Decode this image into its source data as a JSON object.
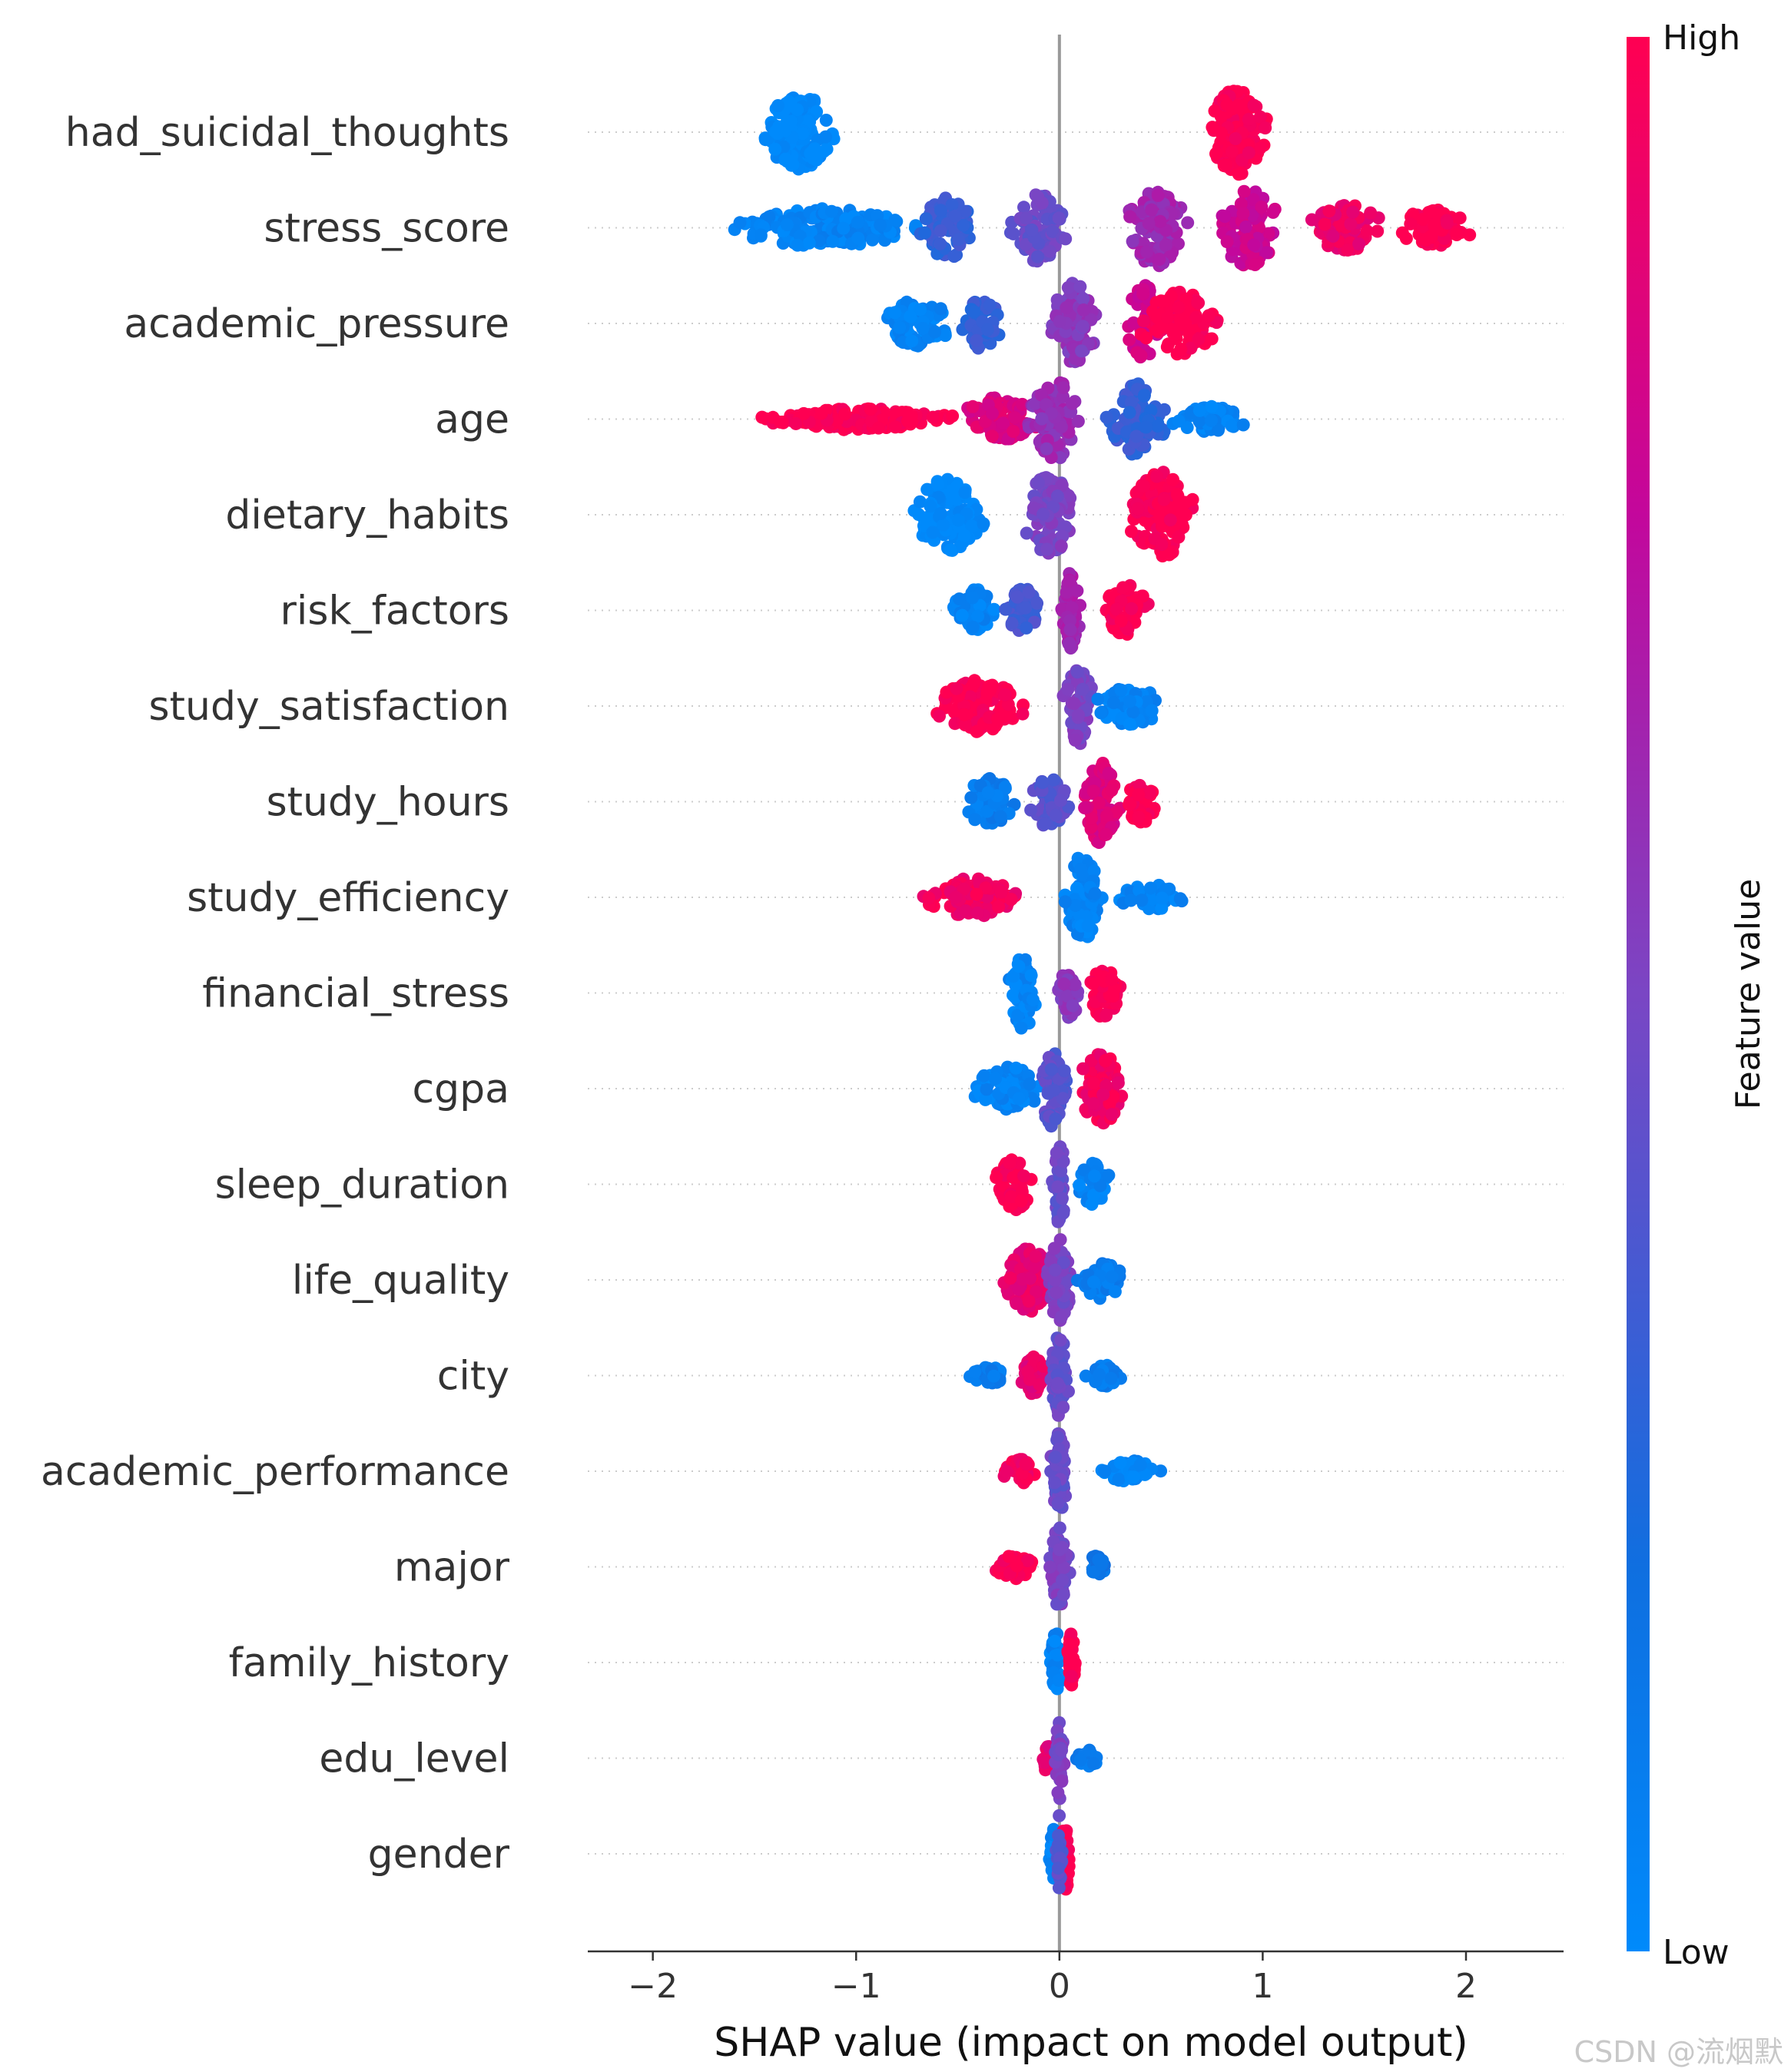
{
  "chart_data": {
    "type": "scatter",
    "subtype": "shap-beeswarm-summary",
    "xlabel": "SHAP value (impact on model output)",
    "xlim": [
      -2.32,
      2.48
    ],
    "xticks": [
      -2,
      -1,
      0,
      1,
      2
    ],
    "xtick_labels": [
      "−2",
      "−1",
      "0",
      "1",
      "2"
    ],
    "colorbar": {
      "label": "Feature value",
      "high_label": "High",
      "low_label": "Low",
      "low_color": "#008afb",
      "high_color": "#ff0052"
    },
    "features": [
      {
        "name": "had_suicidal_thoughts",
        "clusters": [
          {
            "c": -1.28,
            "w": 0.22,
            "h": 0.9,
            "v": 0.0,
            "n": 140
          },
          {
            "c": 0.87,
            "w": 0.18,
            "h": 1.0,
            "v": 1.0,
            "n": 150
          }
        ]
      },
      {
        "name": "stress_score",
        "clusters": [
          {
            "c": -1.15,
            "w": 0.6,
            "h": 0.45,
            "v": 0.05,
            "n": 170
          },
          {
            "c": -0.55,
            "w": 0.18,
            "h": 0.7,
            "v": 0.3,
            "n": 70
          },
          {
            "c": -0.1,
            "w": 0.18,
            "h": 0.8,
            "v": 0.45,
            "n": 80
          },
          {
            "c": 0.48,
            "w": 0.2,
            "h": 0.9,
            "v": 0.62,
            "n": 90
          },
          {
            "c": 0.93,
            "w": 0.2,
            "h": 0.9,
            "v": 0.78,
            "n": 90
          },
          {
            "c": 1.4,
            "w": 0.25,
            "h": 0.55,
            "v": 0.92,
            "n": 70
          },
          {
            "c": 1.85,
            "w": 0.25,
            "h": 0.45,
            "v": 1.0,
            "n": 60
          }
        ]
      },
      {
        "name": "academic_pressure",
        "clusters": [
          {
            "c": -0.7,
            "w": 0.22,
            "h": 0.55,
            "v": 0.05,
            "n": 80
          },
          {
            "c": -0.38,
            "w": 0.12,
            "h": 0.6,
            "v": 0.3,
            "n": 50
          },
          {
            "c": 0.07,
            "w": 0.15,
            "h": 0.95,
            "v": 0.55,
            "n": 90
          },
          {
            "c": 0.42,
            "w": 0.12,
            "h": 0.9,
            "v": 0.8,
            "n": 70
          },
          {
            "c": 0.6,
            "w": 0.25,
            "h": 0.75,
            "v": 1.0,
            "n": 110
          }
        ]
      },
      {
        "name": "age",
        "clusters": [
          {
            "c": -1.0,
            "w": 0.55,
            "h": 0.25,
            "v": 1.0,
            "n": 190
          },
          {
            "c": -0.3,
            "w": 0.25,
            "h": 0.5,
            "v": 0.85,
            "n": 80
          },
          {
            "c": -0.02,
            "w": 0.15,
            "h": 0.95,
            "v": 0.6,
            "n": 90
          },
          {
            "c": 0.38,
            "w": 0.18,
            "h": 0.85,
            "v": 0.3,
            "n": 90
          },
          {
            "c": 0.75,
            "w": 0.25,
            "h": 0.3,
            "v": 0.05,
            "n": 60
          }
        ]
      },
      {
        "name": "dietary_habits",
        "clusters": [
          {
            "c": -0.55,
            "w": 0.22,
            "h": 0.85,
            "v": 0.0,
            "n": 110
          },
          {
            "c": -0.05,
            "w": 0.17,
            "h": 0.95,
            "v": 0.5,
            "n": 100
          },
          {
            "c": 0.5,
            "w": 0.2,
            "h": 1.0,
            "v": 1.0,
            "n": 130
          }
        ]
      },
      {
        "name": "risk_factors",
        "clusters": [
          {
            "c": -0.42,
            "w": 0.14,
            "h": 0.5,
            "v": 0.05,
            "n": 60
          },
          {
            "c": -0.18,
            "w": 0.1,
            "h": 0.55,
            "v": 0.35,
            "n": 50
          },
          {
            "c": 0.05,
            "w": 0.07,
            "h": 0.9,
            "v": 0.65,
            "n": 60
          },
          {
            "c": 0.33,
            "w": 0.14,
            "h": 0.6,
            "v": 1.0,
            "n": 70
          }
        ]
      },
      {
        "name": "study_satisfaction",
        "clusters": [
          {
            "c": -0.4,
            "w": 0.28,
            "h": 0.6,
            "v": 1.0,
            "n": 110
          },
          {
            "c": 0.1,
            "w": 0.1,
            "h": 0.9,
            "v": 0.5,
            "n": 70
          },
          {
            "c": 0.35,
            "w": 0.22,
            "h": 0.45,
            "v": 0.05,
            "n": 70
          }
        ]
      },
      {
        "name": "study_hours",
        "clusters": [
          {
            "c": -0.35,
            "w": 0.18,
            "h": 0.55,
            "v": 0.1,
            "n": 70
          },
          {
            "c": -0.05,
            "w": 0.12,
            "h": 0.6,
            "v": 0.4,
            "n": 60
          },
          {
            "c": 0.2,
            "w": 0.12,
            "h": 0.95,
            "v": 0.85,
            "n": 80
          },
          {
            "c": 0.4,
            "w": 0.1,
            "h": 0.5,
            "v": 1.0,
            "n": 40
          }
        ]
      },
      {
        "name": "study_efficiency",
        "clusters": [
          {
            "c": -0.42,
            "w": 0.3,
            "h": 0.45,
            "v": 0.95,
            "n": 110
          },
          {
            "c": 0.12,
            "w": 0.12,
            "h": 1.0,
            "v": 0.05,
            "n": 100
          },
          {
            "c": 0.45,
            "w": 0.2,
            "h": 0.3,
            "v": 0.05,
            "n": 40
          }
        ]
      },
      {
        "name": "financial_stress",
        "clusters": [
          {
            "c": -0.18,
            "w": 0.09,
            "h": 0.85,
            "v": 0.05,
            "n": 60
          },
          {
            "c": 0.05,
            "w": 0.07,
            "h": 0.6,
            "v": 0.55,
            "n": 40
          },
          {
            "c": 0.22,
            "w": 0.1,
            "h": 0.6,
            "v": 1.0,
            "n": 50
          }
        ]
      },
      {
        "name": "cgpa",
        "clusters": [
          {
            "c": -0.25,
            "w": 0.22,
            "h": 0.5,
            "v": 0.05,
            "n": 80
          },
          {
            "c": -0.03,
            "w": 0.1,
            "h": 0.9,
            "v": 0.4,
            "n": 60
          },
          {
            "c": 0.2,
            "w": 0.15,
            "h": 0.85,
            "v": 0.95,
            "n": 80
          }
        ]
      },
      {
        "name": "sleep_duration",
        "clusters": [
          {
            "c": -0.22,
            "w": 0.12,
            "h": 0.6,
            "v": 1.0,
            "n": 60
          },
          {
            "c": 0.0,
            "w": 0.05,
            "h": 0.9,
            "v": 0.45,
            "n": 50
          },
          {
            "c": 0.17,
            "w": 0.1,
            "h": 0.5,
            "v": 0.05,
            "n": 40
          }
        ]
      },
      {
        "name": "life_quality",
        "clusters": [
          {
            "c": -0.15,
            "w": 0.15,
            "h": 0.75,
            "v": 0.9,
            "n": 80
          },
          {
            "c": 0.0,
            "w": 0.08,
            "h": 0.95,
            "v": 0.5,
            "n": 60
          },
          {
            "c": 0.2,
            "w": 0.15,
            "h": 0.45,
            "v": 0.1,
            "n": 50
          }
        ]
      },
      {
        "name": "city",
        "clusters": [
          {
            "c": -0.35,
            "w": 0.12,
            "h": 0.2,
            "v": 0.1,
            "n": 40
          },
          {
            "c": -0.12,
            "w": 0.08,
            "h": 0.45,
            "v": 0.9,
            "n": 40
          },
          {
            "c": 0.0,
            "w": 0.06,
            "h": 0.95,
            "v": 0.45,
            "n": 60
          },
          {
            "c": 0.22,
            "w": 0.1,
            "h": 0.25,
            "v": 0.1,
            "n": 40
          }
        ]
      },
      {
        "name": "academic_performance",
        "clusters": [
          {
            "c": -0.2,
            "w": 0.1,
            "h": 0.3,
            "v": 0.95,
            "n": 40
          },
          {
            "c": 0.0,
            "w": 0.06,
            "h": 0.95,
            "v": 0.45,
            "n": 60
          },
          {
            "c": 0.35,
            "w": 0.18,
            "h": 0.25,
            "v": 0.05,
            "n": 60
          }
        ]
      },
      {
        "name": "major",
        "clusters": [
          {
            "c": -0.22,
            "w": 0.12,
            "h": 0.3,
            "v": 1.0,
            "n": 50
          },
          {
            "c": 0.0,
            "w": 0.06,
            "h": 0.95,
            "v": 0.5,
            "n": 60
          },
          {
            "c": 0.18,
            "w": 0.06,
            "h": 0.25,
            "v": 0.15,
            "n": 20
          }
        ]
      },
      {
        "name": "family_history",
        "clusters": [
          {
            "c": -0.02,
            "w": 0.03,
            "h": 0.85,
            "v": 0.05,
            "n": 40
          },
          {
            "c": 0.06,
            "w": 0.03,
            "h": 0.7,
            "v": 1.0,
            "n": 40
          }
        ]
      },
      {
        "name": "edu_level",
        "clusters": [
          {
            "c": -0.06,
            "w": 0.04,
            "h": 0.3,
            "v": 0.9,
            "n": 20
          },
          {
            "c": 0.0,
            "w": 0.03,
            "h": 0.95,
            "v": 0.5,
            "n": 40
          },
          {
            "c": 0.14,
            "w": 0.07,
            "h": 0.2,
            "v": 0.1,
            "n": 20
          }
        ]
      },
      {
        "name": "gender",
        "clusters": [
          {
            "c": -0.03,
            "w": 0.03,
            "h": 0.6,
            "v": 0.05,
            "n": 30
          },
          {
            "c": 0.03,
            "w": 0.03,
            "h": 0.85,
            "v": 1.0,
            "n": 35
          },
          {
            "c": 0.0,
            "w": 0.02,
            "h": 0.9,
            "v": 0.4,
            "n": 20
          }
        ]
      }
    ]
  },
  "watermark": "CSDN @流烟默"
}
